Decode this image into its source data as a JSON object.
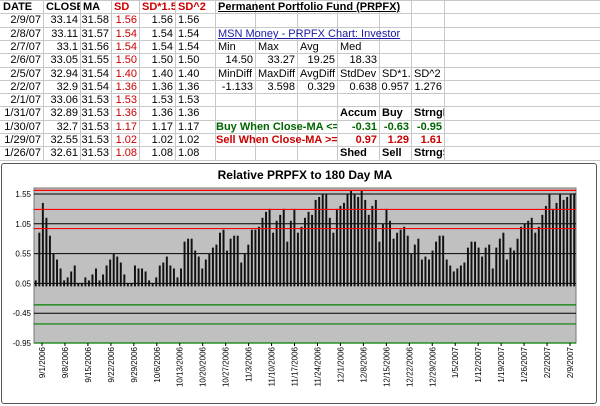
{
  "headers": [
    "DATE",
    "CLOSE",
    "MA",
    "SD",
    "SD*1.5",
    "SD^2"
  ],
  "rows": [
    {
      "date": "2/9/07",
      "close": "33.14",
      "ma": "31.58",
      "sd": "1.56",
      "sd15": "1.56",
      "sd2": "1.56"
    },
    {
      "date": "2/8/07",
      "close": "33.11",
      "ma": "31.57",
      "sd": "1.54",
      "sd15": "1.54",
      "sd2": "1.54"
    },
    {
      "date": "2/7/07",
      "close": "33.1",
      "ma": "31.56",
      "sd": "1.54",
      "sd15": "1.54",
      "sd2": "1.54"
    },
    {
      "date": "2/6/07",
      "close": "33.05",
      "ma": "31.55",
      "sd": "1.50",
      "sd15": "1.50",
      "sd2": "1.50"
    },
    {
      "date": "2/5/07",
      "close": "32.94",
      "ma": "31.54",
      "sd": "1.40",
      "sd15": "1.40",
      "sd2": "1.40"
    },
    {
      "date": "2/2/07",
      "close": "32.9",
      "ma": "31.54",
      "sd": "1.36",
      "sd15": "1.36",
      "sd2": "1.36"
    },
    {
      "date": "2/1/07",
      "close": "33.06",
      "ma": "31.53",
      "sd": "1.53",
      "sd15": "1.53",
      "sd2": "1.53"
    },
    {
      "date": "1/31/07",
      "close": "32.89",
      "ma": "31.53",
      "sd": "1.36",
      "sd15": "1.36",
      "sd2": "1.36"
    },
    {
      "date": "1/30/07",
      "close": "32.7",
      "ma": "31.53",
      "sd": "1.17",
      "sd15": "1.17",
      "sd2": "1.17"
    },
    {
      "date": "1/29/07",
      "close": "32.55",
      "ma": "31.53",
      "sd": "1.02",
      "sd15": "1.02",
      "sd2": "1.02"
    },
    {
      "date": "1/26/07",
      "close": "32.61",
      "ma": "31.53",
      "sd": "1.08",
      "sd15": "1.08",
      "sd2": "1.08"
    }
  ],
  "panel": {
    "title": "Permanent Portfolio Fund (PRPFX)",
    "link": "MSN Money - PRPFX Chart: Investor",
    "stats1": {
      "labels": [
        "Min",
        "Max",
        "Avg",
        "Med"
      ],
      "values": [
        "14.50",
        "33.27",
        "19.25",
        "18.33"
      ]
    },
    "stats2": {
      "labels": [
        "MinDiff",
        "MaxDiff",
        "AvgDiff",
        "StdDev",
        "SD*1.5",
        "SD^2"
      ],
      "values": [
        "-1.133",
        "3.598",
        "0.329",
        "0.638",
        "0.957",
        "1.276"
      ]
    },
    "top_labels": [
      "Accum",
      "Buy",
      "StrngBuy"
    ],
    "buy_label": "Buy When Close-MA <=",
    "buy_values": [
      "-0.31",
      "-0.63",
      "-0.95"
    ],
    "sell_label": "Sell When Close-MA >=",
    "sell_values": [
      "0.97",
      "1.29",
      "1.61"
    ],
    "bottom_labels": [
      "Shed",
      "Sell",
      "StrngSell"
    ]
  },
  "chart_data": {
    "type": "bar",
    "title": "Relative PRPFX to 180 Day MA",
    "ylim": [
      -0.95,
      1.65
    ],
    "yticks": [
      1.55,
      1.05,
      0.55,
      0.05,
      -0.45,
      -0.95
    ],
    "yticklabels": [
      "1.55",
      "1.05",
      "0.55",
      "0.05",
      "-0.45",
      "-0.95"
    ],
    "grid": true,
    "colors": {
      "plot_background": "#c0c0c0",
      "bars": "#111111",
      "sell_lines": "#ff0000",
      "buy_lines": "#008000"
    },
    "reference_lines": {
      "sell": [
        0.97,
        1.29,
        1.61
      ],
      "buy": [
        -0.31,
        -0.63,
        -0.95
      ]
    },
    "xticklabels": [
      "9/1/2006",
      "9/8/2006",
      "9/15/2006",
      "9/22/2006",
      "9/29/2006",
      "10/6/2006",
      "10/13/2006",
      "10/20/2006",
      "10/27/2006",
      "11/3/2006",
      "11/10/2006",
      "11/17/2006",
      "11/24/2006",
      "12/1/2006",
      "12/8/2006",
      "12/15/2006",
      "12/22/2006",
      "12/29/2006",
      "1/5/2007",
      "1/12/2007",
      "1/19/2007",
      "1/26/2007",
      "2/2/2007",
      "2/9/2007"
    ],
    "values": [
      0.1,
      0.9,
      1.4,
      1.15,
      0.85,
      0.55,
      0.45,
      0.3,
      0.1,
      0.15,
      0.25,
      0.35,
      0.05,
      0.05,
      0.15,
      0.1,
      0.2,
      0.3,
      0.1,
      0.2,
      0.35,
      0.45,
      0.55,
      0.5,
      0.4,
      0.2,
      0.05,
      0.05,
      0.35,
      0.3,
      0.3,
      0.25,
      0.1,
      0.05,
      0.15,
      0.35,
      0.4,
      0.5,
      0.35,
      0.3,
      0.15,
      0.3,
      0.75,
      0.8,
      0.8,
      0.6,
      0.5,
      0.3,
      0.45,
      0.55,
      0.65,
      0.7,
      0.9,
      0.95,
      0.6,
      0.8,
      0.85,
      0.85,
      0.4,
      0.55,
      0.7,
      0.95,
      0.95,
      1.0,
      1.15,
      1.25,
      1.3,
      0.9,
      1.1,
      1.2,
      1.3,
      0.75,
      1.1,
      1.3,
      0.9,
      1.0,
      1.15,
      1.25,
      1.2,
      1.45,
      1.5,
      1.55,
      1.55,
      1.15,
      0.9,
      1.3,
      1.35,
      1.4,
      1.55,
      1.6,
      1.55,
      1.5,
      1.6,
      1.45,
      1.2,
      1.35,
      1.45,
      0.75,
      1.05,
      1.3,
      1.1,
      0.8,
      0.9,
      0.95,
      1.0,
      0.85,
      0.55,
      0.7,
      0.8,
      0.45,
      0.5,
      0.45,
      0.6,
      0.75,
      0.85,
      0.85,
      0.45,
      0.35,
      0.25,
      0.3,
      0.35,
      0.4,
      0.65,
      0.75,
      0.75,
      0.65,
      0.5,
      0.65,
      0.7,
      0.3,
      0.65,
      0.8,
      0.9,
      0.45,
      0.65,
      0.6,
      0.8,
      1.0,
      1.05,
      1.1,
      1.15,
      0.9,
      1.0,
      1.2,
      1.35,
      1.55,
      1.3,
      1.4,
      1.55,
      1.45,
      1.5,
      1.55,
      1.56
    ]
  }
}
